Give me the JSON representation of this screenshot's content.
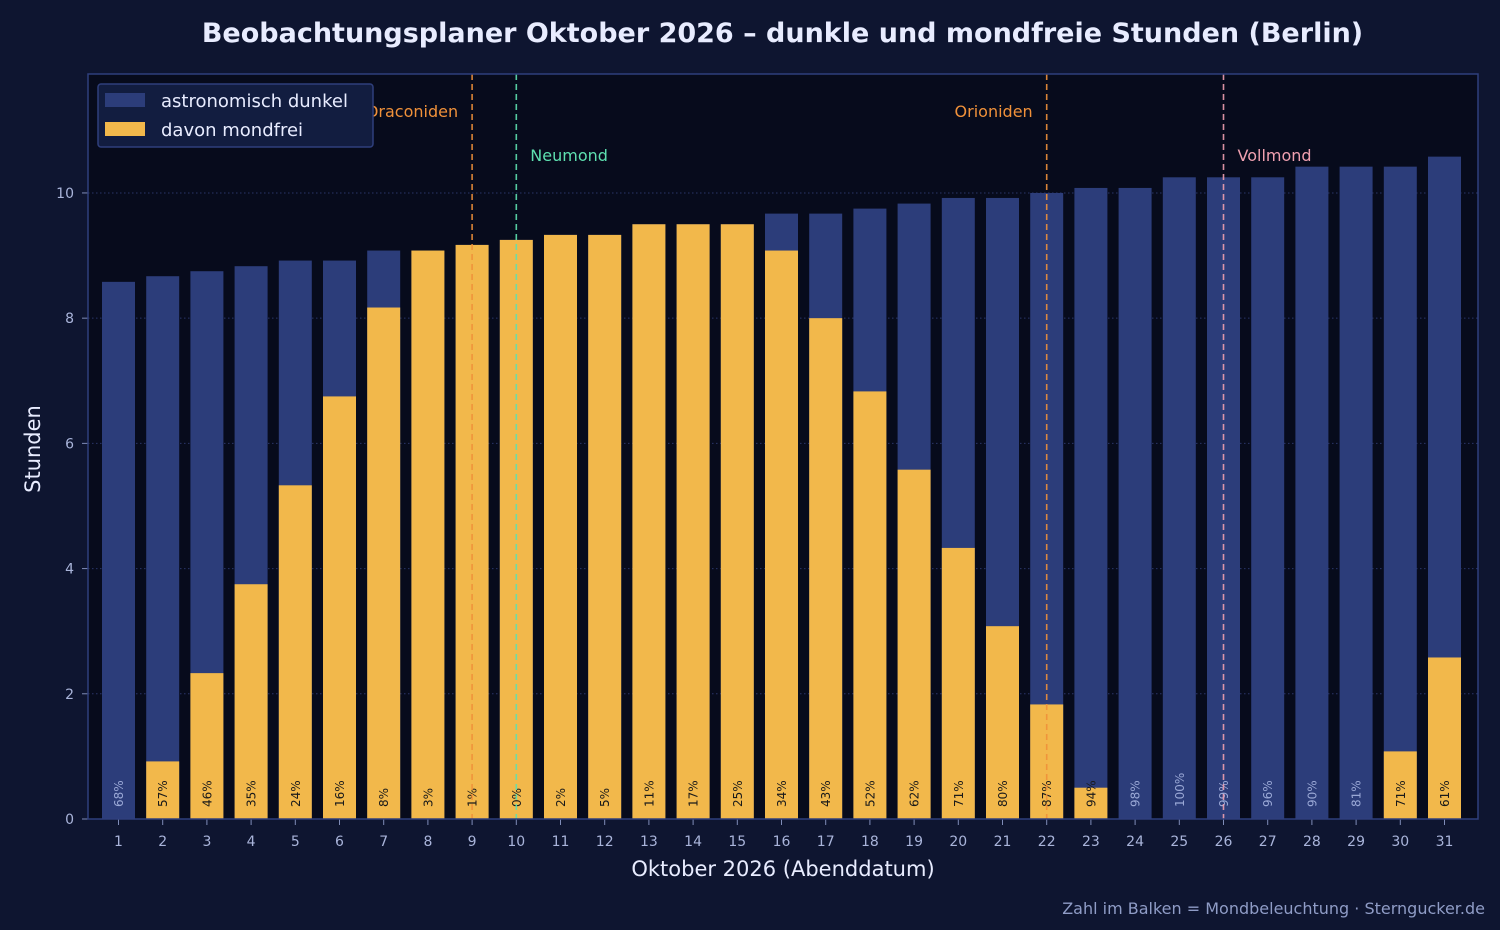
{
  "chart_data": {
    "type": "bar",
    "title": "Beobachtungsplaner Oktober 2026 – dunkle und mondfreie Stunden (Berlin)",
    "xlabel": "Oktober 2026 (Abenddatum)",
    "ylabel": "Stunden",
    "ylim": [
      0,
      11.9
    ],
    "yticks": [
      0,
      2,
      4,
      6,
      8,
      10
    ],
    "grid": true,
    "legend_position": "top-left",
    "categories": [
      "1",
      "2",
      "3",
      "4",
      "5",
      "6",
      "7",
      "8",
      "9",
      "10",
      "11",
      "12",
      "13",
      "14",
      "15",
      "16",
      "17",
      "18",
      "19",
      "20",
      "21",
      "22",
      "23",
      "24",
      "25",
      "26",
      "27",
      "28",
      "29",
      "30",
      "31"
    ],
    "series": [
      {
        "name": "astronomisch dunkel",
        "color": "#2c3d7a",
        "values": [
          8.58,
          8.67,
          8.75,
          8.83,
          8.92,
          8.92,
          9.08,
          9.08,
          9.17,
          9.25,
          9.33,
          9.33,
          9.5,
          9.5,
          9.5,
          9.67,
          9.67,
          9.75,
          9.83,
          9.92,
          9.92,
          10.0,
          10.08,
          10.08,
          10.25,
          10.25,
          10.25,
          10.42,
          10.42,
          10.42,
          10.58
        ]
      },
      {
        "name": "davon mondfrei",
        "color": "#f2b84b",
        "values": [
          0,
          0.92,
          2.33,
          3.75,
          5.33,
          6.75,
          8.17,
          9.08,
          9.17,
          9.25,
          9.33,
          9.33,
          9.5,
          9.5,
          9.5,
          9.08,
          8.0,
          6.83,
          5.58,
          4.33,
          3.08,
          1.83,
          0.5,
          0,
          0,
          0,
          0,
          0,
          0,
          1.08,
          2.58
        ]
      }
    ],
    "moon_illumination_labels": [
      "68%",
      "57%",
      "46%",
      "35%",
      "24%",
      "16%",
      "8%",
      "3%",
      "1%",
      "0%",
      "2%",
      "5%",
      "11%",
      "17%",
      "25%",
      "34%",
      "43%",
      "52%",
      "62%",
      "71%",
      "80%",
      "87%",
      "94%",
      "98%",
      "100%",
      "99%",
      "96%",
      "90%",
      "81%",
      "71%",
      "61%"
    ],
    "events": [
      {
        "label": "Draconiden",
        "day": 9,
        "color": "#f0913a"
      },
      {
        "label": "Neumond",
        "day": 10,
        "color": "#5ee0b0"
      },
      {
        "label": "Orioniden",
        "day": 22,
        "color": "#f0913a"
      },
      {
        "label": "Vollmond",
        "day": 26,
        "color": "#f0a0b0"
      }
    ],
    "footer": "Zahl im Balken = Mondbeleuchtung · Sterngucker.de"
  }
}
